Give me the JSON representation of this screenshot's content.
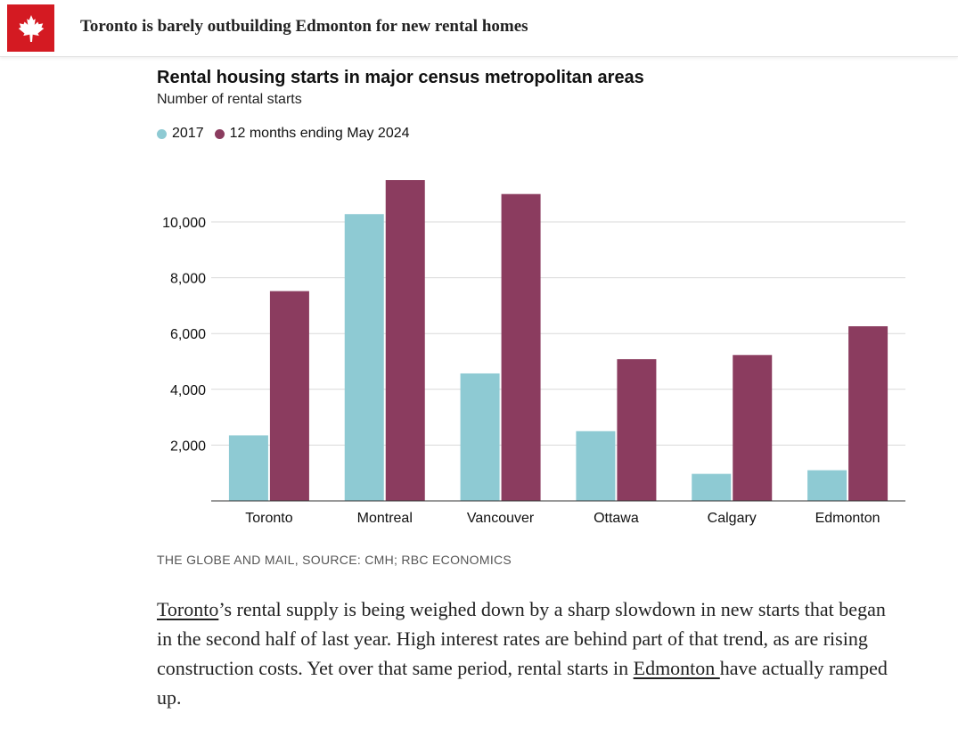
{
  "header": {
    "title": "Toronto is barely outbuilding Edmonton for new rental homes",
    "logo_icon": "maple-leaf-icon",
    "brand_color": "#d41a22"
  },
  "chart_data": {
    "type": "bar",
    "title": "Rental housing starts in major census metropolitan areas",
    "subtitle": "Number of rental starts",
    "categories": [
      "Toronto",
      "Montreal",
      "Vancouver",
      "Ottawa",
      "Calgary",
      "Edmonton"
    ],
    "series": [
      {
        "name": "2017",
        "color": "#8ecad3",
        "values": [
          2350,
          10280,
          4570,
          2500,
          970,
          1100
        ]
      },
      {
        "name": "12 months ending May 2024",
        "color": "#8b3c5f",
        "values": [
          7520,
          11500,
          11000,
          5080,
          5230,
          6260
        ]
      }
    ],
    "yticks": [
      2000,
      4000,
      6000,
      8000,
      10000
    ],
    "ytick_labels": [
      "2,000",
      "4,000",
      "6,000",
      "8,000",
      "10,000"
    ],
    "ylim": [
      0,
      12000
    ],
    "grid": true,
    "legend_position": "top-left"
  },
  "source": "THE GLOBE AND MAIL, SOURCE: CMH; RBC ECONOMICS",
  "article": {
    "link1": "Toronto",
    "text1": "’s rental supply is being weighed down by a sharp slowdown in new starts that began in the second half of last year. High interest rates are behind part of that trend, as are rising construction costs. Yet over that same period, rental starts in ",
    "link2": "Edmonton ",
    "text2": "have actually ramped up."
  }
}
